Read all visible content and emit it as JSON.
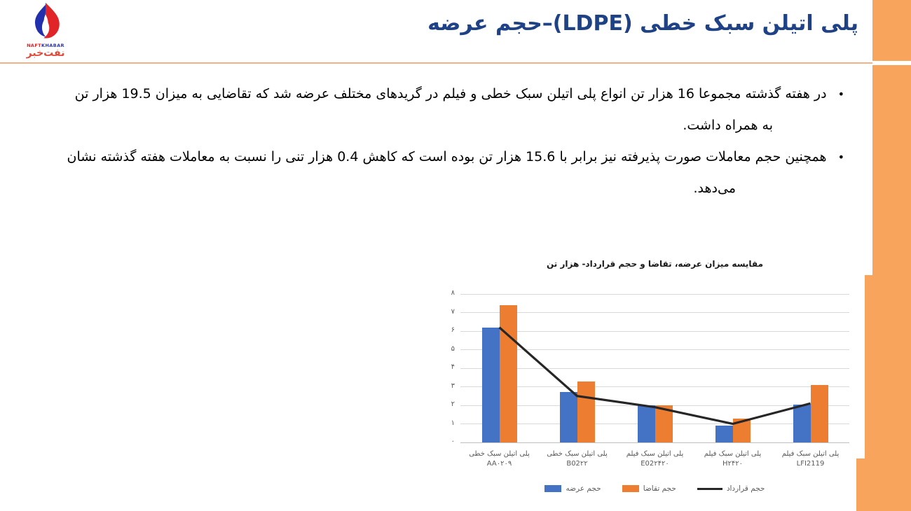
{
  "header": {
    "title": "پلی اتیلن سبک خطی (LDPE)–حجم عرضه"
  },
  "logo": {
    "brand_en_part1": "NAFT",
    "brand_en_part2": "KHABAR",
    "brand_fa": "نفت‌خبر"
  },
  "bullets": [
    {
      "marker": "•",
      "line1": "در هفته گذشته مجموعا 16 هزار تن انواع پلی اتیلن سبک خطی و فیلم در گریدهای مختلف عرضه شد که تقاضایی به میزان 19.5 هزار تن",
      "line2": "به همراه داشت."
    },
    {
      "marker": "•",
      "line1": "همچنین حجم معاملات صورت پذیرفته نیز برابر با 15.6 هزار تن بوده است که کاهش 0.4 هزار تنی را نسبت به معاملات هفته گذشته نشان",
      "line2": "می‌دهد."
    }
  ],
  "colors": {
    "accent_orange": "#F8A45D",
    "rule_orange": "#F3B285",
    "title_blue": "#1F4287",
    "bar_blue": "#4472C4",
    "bar_orange": "#ED7D31",
    "line_black": "#262626",
    "grid_gray": "#D9D9D9",
    "axis_text_gray": "#595959"
  },
  "chart_data": {
    "type": "bar",
    "title": "مقایسه میزان عرضه، تقاضا و حجم قرارداد-  هزار تن",
    "categories": [
      {
        "name": "پلی اتیلن سبک خطی",
        "grade": "AA۰۲۰۹"
      },
      {
        "name": "پلی اتیلن سبک خطی",
        "grade": "B02۲۲"
      },
      {
        "name": "پلی اتیلن سبک فیلم",
        "grade": "E02۲۴۲۰"
      },
      {
        "name": "پلی اتیلن سبک فیلم",
        "grade": "H۲۴۲۰"
      },
      {
        "name": "پلی اتیلن سبک فیلم",
        "grade": "LFI2119"
      }
    ],
    "series": [
      {
        "name": "حجم عرضه",
        "type": "bar",
        "color": "#4472C4",
        "values": [
          6.2,
          2.7,
          2.0,
          0.9,
          2.05
        ]
      },
      {
        "name": "حجم تقاضا",
        "type": "bar",
        "color": "#ED7D31",
        "values": [
          7.4,
          3.3,
          2.0,
          1.3,
          3.1
        ]
      },
      {
        "name": "حجم قرارداد",
        "type": "line",
        "color": "#262626",
        "values": [
          6.2,
          2.5,
          1.9,
          1.0,
          2.1
        ]
      }
    ],
    "ylim": [
      0,
      8
    ],
    "yticks": [
      "۰",
      "۱",
      "۲",
      "۳",
      "۴",
      "۵",
      "۶",
      "۷",
      "۸"
    ],
    "grid": true,
    "legend_position": "bottom"
  }
}
